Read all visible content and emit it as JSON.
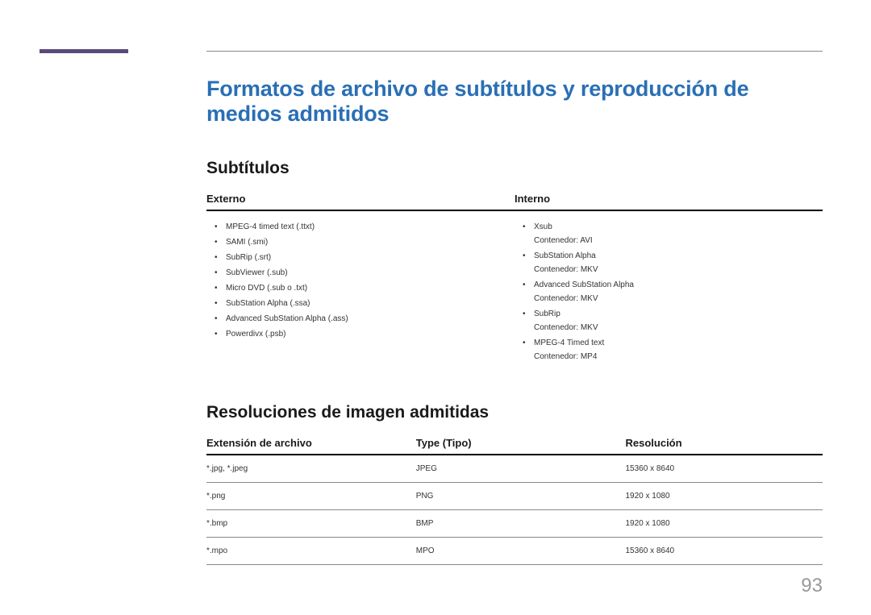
{
  "style": {
    "accent_color": "#5a4a7a",
    "title_color": "#2a6fb5",
    "text_color": "#1a1a1a",
    "body_text_color": "#333333",
    "rule_color": "#888888",
    "heavy_rule_color": "#000000",
    "page_number_color": "#999999",
    "title_fontsize": 27,
    "section_fontsize": 21,
    "header_fontsize": 13,
    "body_fontsize": 10
  },
  "main_title": "Formatos de archivo de subtítulos y reproducción de medios admitidos",
  "section_subtitles": {
    "title": "Subtítulos",
    "columns": [
      {
        "header": "Externo",
        "items": [
          {
            "text": "MPEG-4 timed text (.ttxt)"
          },
          {
            "text": "SAMI (.smi)"
          },
          {
            "text": "SubRip (.srt)"
          },
          {
            "text": "SubViewer (.sub)"
          },
          {
            "text": "Micro DVD (.sub o .txt)"
          },
          {
            "text": "SubStation Alpha (.ssa)"
          },
          {
            "text": "Advanced SubStation Alpha (.ass)"
          },
          {
            "text": "Powerdivx (.psb)"
          }
        ]
      },
      {
        "header": "Interno",
        "items": [
          {
            "text": "Xsub",
            "sub": "Contenedor: AVI"
          },
          {
            "text": "SubStation Alpha",
            "sub": "Contenedor: MKV"
          },
          {
            "text": "Advanced SubStation Alpha",
            "sub": "Contenedor: MKV"
          },
          {
            "text": "SubRip",
            "sub": "Contenedor: MKV"
          },
          {
            "text": "MPEG-4 Timed text",
            "sub": "Contenedor: MP4"
          }
        ]
      }
    ]
  },
  "section_resolutions": {
    "title": "Resoluciones de imagen admitidas",
    "columns": [
      "Extensión de archivo",
      "Type (Tipo)",
      "Resolución"
    ],
    "rows": [
      [
        "*.jpg, *.jpeg",
        "JPEG",
        "15360 x 8640"
      ],
      [
        "*.png",
        "PNG",
        "1920 x 1080"
      ],
      [
        "*.bmp",
        "BMP",
        "1920 x 1080"
      ],
      [
        "*.mpo",
        "MPO",
        "15360 x 8640"
      ]
    ]
  },
  "page_number": "93"
}
